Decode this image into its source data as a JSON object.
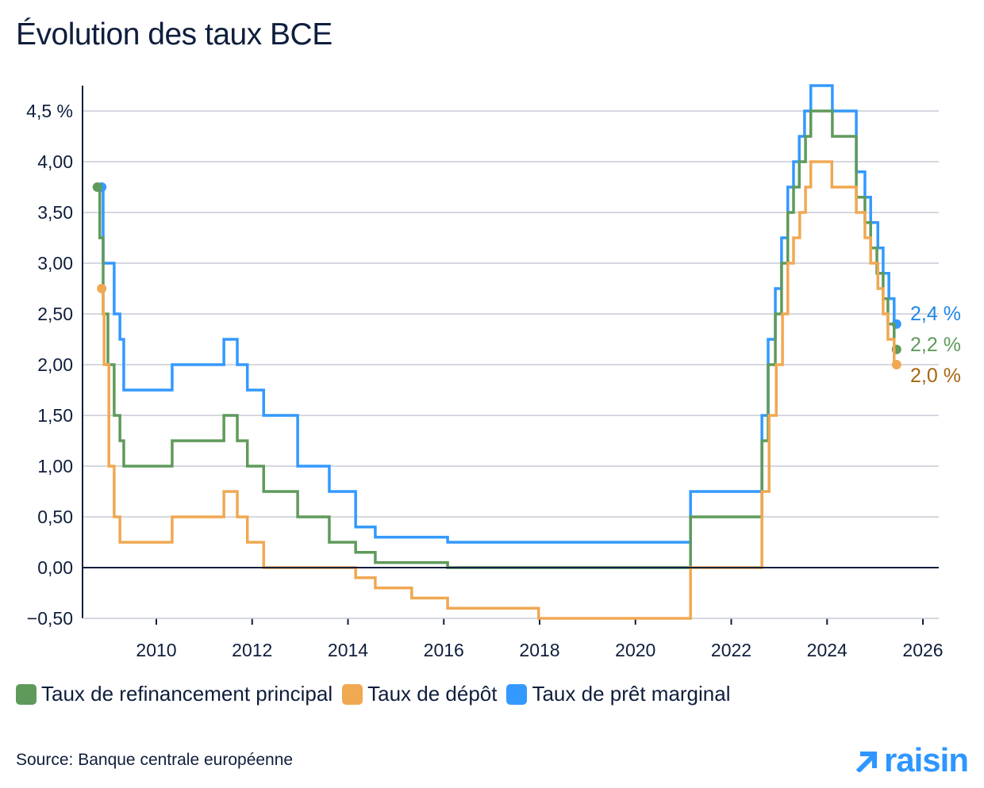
{
  "title": "Évolution des taux BCE",
  "source": "Source: Banque centrale européenne",
  "logo_text": "raisin",
  "chart_data": {
    "type": "line",
    "step": true,
    "title": "Évolution des taux BCE",
    "xlabel": "",
    "ylabel": "",
    "xlim": [
      2008.46,
      2026.33
    ],
    "ylim": [
      -0.5,
      4.75
    ],
    "grid": true,
    "legend_position": "bottom",
    "x_ticks": [
      2010,
      2012,
      2014,
      2016,
      2018,
      2020,
      2022,
      2024,
      2026
    ],
    "x_tick_labels": [
      "2010",
      "2012",
      "2014",
      "2016",
      "2018",
      "2020",
      "2022",
      "2024",
      "2026"
    ],
    "y_ticks": [
      4.5,
      4.0,
      3.5,
      3.0,
      2.5,
      2.0,
      1.5,
      1.0,
      0.5,
      0.0,
      -0.5
    ],
    "y_tick_labels": [
      "4,5 %",
      "4,00",
      "3,50",
      "3,00",
      "2,50",
      "2,00",
      "1,50",
      "1,00",
      "0,50",
      "0,00",
      "−0,50"
    ],
    "series": [
      {
        "name": "Taux de prêt marginal",
        "color": "#3399ff",
        "label_color": "#1f87e6",
        "end_label": "2,4 %",
        "points": [
          [
            2008.86,
            3.75
          ],
          [
            2008.89,
            3.0
          ],
          [
            2009.12,
            2.5
          ],
          [
            2009.24,
            2.25
          ],
          [
            2009.32,
            1.75
          ],
          [
            2010.33,
            2.0
          ],
          [
            2011.41,
            2.25
          ],
          [
            2011.69,
            2.0
          ],
          [
            2011.9,
            1.75
          ],
          [
            2012.24,
            1.5
          ],
          [
            2012.95,
            1.0
          ],
          [
            2013.61,
            0.75
          ],
          [
            2014.16,
            0.4
          ],
          [
            2014.57,
            0.3
          ],
          [
            2016.08,
            0.25
          ],
          [
            2021.15,
            0.75
          ],
          [
            2022.64,
            1.5
          ],
          [
            2022.77,
            2.25
          ],
          [
            2022.92,
            2.75
          ],
          [
            2023.05,
            3.25
          ],
          [
            2023.18,
            3.75
          ],
          [
            2023.3,
            4.0
          ],
          [
            2023.42,
            4.25
          ],
          [
            2023.53,
            4.5
          ],
          [
            2023.66,
            4.75
          ],
          [
            2024.11,
            4.5
          ],
          [
            2024.61,
            3.9
          ],
          [
            2024.79,
            3.65
          ],
          [
            2024.91,
            3.4
          ],
          [
            2025.06,
            3.15
          ],
          [
            2025.17,
            2.9
          ],
          [
            2025.29,
            2.65
          ],
          [
            2025.4,
            2.4
          ],
          [
            2025.45,
            2.4
          ]
        ]
      },
      {
        "name": "Taux de refinancement principal",
        "color": "#5f9a5b",
        "label_color": "#5f9a5b",
        "end_label": "2,2 %",
        "points": [
          [
            2008.77,
            3.75
          ],
          [
            2008.82,
            3.25
          ],
          [
            2008.89,
            2.5
          ],
          [
            2008.99,
            2.0
          ],
          [
            2009.12,
            1.5
          ],
          [
            2009.24,
            1.25
          ],
          [
            2009.32,
            1.0
          ],
          [
            2010.33,
            1.25
          ],
          [
            2011.41,
            1.5
          ],
          [
            2011.69,
            1.25
          ],
          [
            2011.9,
            1.0
          ],
          [
            2012.24,
            0.75
          ],
          [
            2012.95,
            0.5
          ],
          [
            2013.61,
            0.25
          ],
          [
            2014.16,
            0.15
          ],
          [
            2014.57,
            0.05
          ],
          [
            2016.08,
            0.0
          ],
          [
            2021.15,
            0.5
          ],
          [
            2022.64,
            1.25
          ],
          [
            2022.77,
            2.0
          ],
          [
            2022.92,
            2.5
          ],
          [
            2023.05,
            3.0
          ],
          [
            2023.18,
            3.5
          ],
          [
            2023.3,
            3.75
          ],
          [
            2023.42,
            4.0
          ],
          [
            2023.55,
            4.25
          ],
          [
            2023.66,
            4.5
          ],
          [
            2024.11,
            4.25
          ],
          [
            2024.61,
            3.65
          ],
          [
            2024.79,
            3.4
          ],
          [
            2024.91,
            3.15
          ],
          [
            2025.04,
            2.9
          ],
          [
            2025.17,
            2.65
          ],
          [
            2025.27,
            2.4
          ],
          [
            2025.4,
            2.15
          ],
          [
            2025.45,
            2.15
          ]
        ]
      },
      {
        "name": "Taux de dépôt",
        "color": "#f0a852",
        "label_color": "#a8650f",
        "end_label": "2,0 %",
        "points": [
          [
            2008.86,
            2.75
          ],
          [
            2008.89,
            2.5
          ],
          [
            2008.91,
            2.0
          ],
          [
            2009.01,
            1.0
          ],
          [
            2009.12,
            0.5
          ],
          [
            2009.24,
            0.25
          ],
          [
            2010.33,
            0.5
          ],
          [
            2011.41,
            0.75
          ],
          [
            2011.69,
            0.5
          ],
          [
            2011.9,
            0.25
          ],
          [
            2012.24,
            0.0
          ],
          [
            2014.16,
            -0.1
          ],
          [
            2014.57,
            -0.2
          ],
          [
            2015.33,
            -0.3
          ],
          [
            2016.08,
            -0.4
          ],
          [
            2017.98,
            -0.5
          ],
          [
            2021.15,
            0.0
          ],
          [
            2022.64,
            0.75
          ],
          [
            2022.79,
            1.5
          ],
          [
            2022.94,
            2.0
          ],
          [
            2023.07,
            2.5
          ],
          [
            2023.18,
            3.0
          ],
          [
            2023.3,
            3.25
          ],
          [
            2023.43,
            3.5
          ],
          [
            2023.55,
            3.75
          ],
          [
            2023.66,
            4.0
          ],
          [
            2024.1,
            3.75
          ],
          [
            2024.61,
            3.5
          ],
          [
            2024.79,
            3.25
          ],
          [
            2024.91,
            3.0
          ],
          [
            2025.06,
            2.75
          ],
          [
            2025.17,
            2.5
          ],
          [
            2025.27,
            2.25
          ],
          [
            2025.4,
            2.0
          ],
          [
            2025.45,
            2.0
          ]
        ]
      }
    ],
    "legend": [
      {
        "label": "Taux de refinancement principal",
        "color": "#5f9a5b"
      },
      {
        "label": "Taux de dépôt",
        "color": "#f0a852"
      },
      {
        "label": "Taux de prêt marginal",
        "color": "#3399ff"
      }
    ]
  }
}
